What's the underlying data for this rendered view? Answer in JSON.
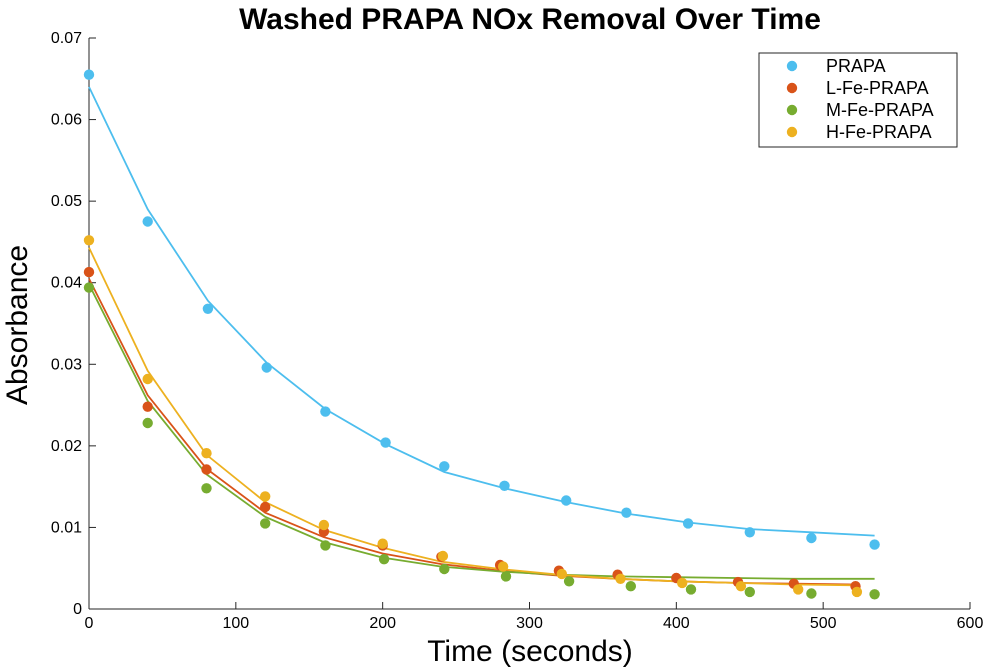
{
  "chart_data": {
    "type": "scatter",
    "title": "Washed PRAPA NOx Removal Over Time",
    "xlabel": "Time (seconds)",
    "ylabel": "Absorbance",
    "xlim": [
      0,
      600
    ],
    "ylim": [
      0,
      0.07
    ],
    "xticks": [
      "0",
      "100",
      "200",
      "300",
      "400",
      "500",
      "600"
    ],
    "yticks": [
      "0",
      "0.01",
      "0.02",
      "0.03",
      "0.04",
      "0.05",
      "0.06",
      "0.07"
    ],
    "grid": false,
    "legend_position": "top-right",
    "series": [
      {
        "name": "PRAPA",
        "color": "#4DBEEE",
        "x": [
          0,
          40,
          81,
          121,
          161,
          202,
          242,
          283,
          325,
          366,
          408,
          450,
          492,
          535
        ],
        "y": [
          0.0655,
          0.0475,
          0.0368,
          0.0296,
          0.0242,
          0.0204,
          0.0175,
          0.0151,
          0.0133,
          0.0118,
          0.0105,
          0.0094,
          0.0087,
          0.0079
        ],
        "fit_x": [
          0,
          40,
          81,
          121,
          161,
          202,
          242,
          283,
          325,
          366,
          408,
          450,
          492,
          535
        ],
        "fit_y": [
          0.064,
          0.049,
          0.0378,
          0.0302,
          0.0245,
          0.0202,
          0.0168,
          0.0148,
          0.0131,
          0.0117,
          0.0106,
          0.0098,
          0.0094,
          0.009
        ]
      },
      {
        "name": "L-Fe-PRAPA",
        "color": "#D95319",
        "x": [
          0,
          40,
          80,
          120,
          160,
          200,
          240,
          280,
          320,
          360,
          400,
          442,
          480,
          522
        ],
        "y": [
          0.0413,
          0.0248,
          0.0171,
          0.0125,
          0.0095,
          0.0078,
          0.0064,
          0.0054,
          0.0047,
          0.0042,
          0.0038,
          0.0033,
          0.0031,
          0.0028
        ],
        "fit_x": [
          0,
          40,
          80,
          120,
          160,
          200,
          240,
          280,
          320,
          360,
          400,
          440,
          480,
          522
        ],
        "fit_y": [
          0.0405,
          0.0262,
          0.0172,
          0.0118,
          0.0088,
          0.0068,
          0.0055,
          0.0047,
          0.0041,
          0.0037,
          0.0034,
          0.0032,
          0.0031,
          0.003
        ]
      },
      {
        "name": "M-Fe-PRAPA",
        "color": "#77AC30",
        "x": [
          0,
          40,
          80,
          120,
          161,
          201,
          242,
          284,
          327,
          369,
          410,
          450,
          492,
          535
        ],
        "y": [
          0.0394,
          0.0228,
          0.0148,
          0.0105,
          0.0078,
          0.0061,
          0.0049,
          0.004,
          0.0034,
          0.0028,
          0.0024,
          0.0021,
          0.0019,
          0.0018
        ],
        "fit_x": [
          0,
          40,
          80,
          120,
          160,
          200,
          240,
          280,
          320,
          360,
          400,
          440,
          480,
          535
        ],
        "fit_y": [
          0.0398,
          0.0255,
          0.0165,
          0.0113,
          0.0082,
          0.0063,
          0.0052,
          0.0046,
          0.0042,
          0.004,
          0.0039,
          0.0038,
          0.0037,
          0.0037
        ]
      },
      {
        "name": "H-Fe-PRAPA",
        "color": "#EDB120",
        "x": [
          0,
          40,
          80,
          120,
          160,
          200,
          241,
          282,
          322,
          362,
          404,
          444,
          483,
          523
        ],
        "y": [
          0.0452,
          0.0282,
          0.0191,
          0.0138,
          0.0103,
          0.008,
          0.0065,
          0.0052,
          0.0043,
          0.0037,
          0.0032,
          0.0028,
          0.0024,
          0.0021
        ],
        "fit_x": [
          0,
          40,
          80,
          120,
          160,
          200,
          240,
          280,
          320,
          360,
          400,
          440,
          480,
          523
        ],
        "fit_y": [
          0.0443,
          0.0292,
          0.0189,
          0.0131,
          0.0097,
          0.0075,
          0.0058,
          0.0049,
          0.0042,
          0.0037,
          0.0034,
          0.0032,
          0.003,
          0.0029
        ]
      }
    ]
  }
}
